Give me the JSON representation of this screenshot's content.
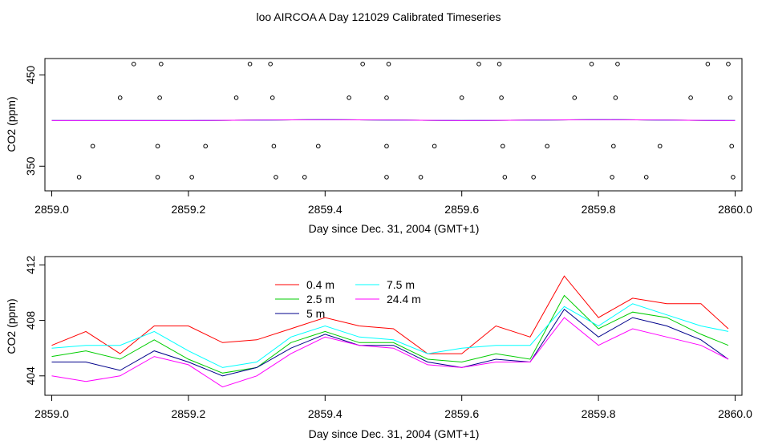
{
  "colors": {
    "background": "#ffffff",
    "axis": "#000000"
  },
  "chart_data": [
    {
      "type": "line",
      "title": "loo AIRCOA A  Day 121029  Calibrated Timeseries",
      "xlabel": "Day since Dec. 31, 2004 (GMT+1)",
      "ylabel": "CO2 (ppm)",
      "xlim": [
        2858.99,
        2860.01
      ],
      "ylim": [
        323,
        468
      ],
      "xticks": [
        2859.0,
        2859.2,
        2859.4,
        2859.6,
        2859.8,
        2860.0
      ],
      "xtick_labels": [
        "2859.0",
        "2859.2",
        "2859.4",
        "2859.6",
        "2859.8",
        "2860.0"
      ],
      "yticks": [
        350,
        450
      ],
      "ytick_labels": [
        "350",
        "450"
      ],
      "grid": false,
      "series": [
        {
          "color": "#ff0000",
          "x": [
            2859.0,
            2859.2,
            2859.4,
            2859.6,
            2859.8,
            2860.0
          ],
          "values": [
            400,
            400,
            401,
            400,
            401,
            400
          ]
        },
        {
          "color": "#00cd00",
          "x": [
            2859.0,
            2859.2,
            2859.4,
            2859.6,
            2859.8,
            2860.0
          ],
          "values": [
            400,
            400,
            401,
            400,
            401,
            400
          ]
        },
        {
          "color": "#0000ff",
          "x": [
            2859.0,
            2859.2,
            2859.4,
            2859.6,
            2859.8,
            2860.0
          ],
          "values": [
            400,
            400,
            401,
            400,
            401,
            400
          ]
        },
        {
          "color": "#00ffff",
          "x": [
            2859.0,
            2859.2,
            2859.4,
            2859.6,
            2859.8,
            2860.0
          ],
          "values": [
            400,
            400,
            401,
            400,
            401,
            400
          ]
        },
        {
          "color": "#ff00ff",
          "x": [
            2859.0,
            2859.2,
            2859.4,
            2859.6,
            2859.8,
            2860.0
          ],
          "values": [
            400,
            400,
            401,
            400,
            401,
            400
          ]
        }
      ],
      "points": [
        {
          "x": 2859.04,
          "y": 338
        },
        {
          "x": 2859.06,
          "y": 372
        },
        {
          "x": 2859.1,
          "y": 425
        },
        {
          "x": 2859.12,
          "y": 462
        },
        {
          "x": 2859.155,
          "y": 338
        },
        {
          "x": 2859.155,
          "y": 372
        },
        {
          "x": 2859.158,
          "y": 425
        },
        {
          "x": 2859.16,
          "y": 462
        },
        {
          "x": 2859.205,
          "y": 338
        },
        {
          "x": 2859.225,
          "y": 372
        },
        {
          "x": 2859.27,
          "y": 425
        },
        {
          "x": 2859.29,
          "y": 462
        },
        {
          "x": 2859.32,
          "y": 462
        },
        {
          "x": 2859.323,
          "y": 425
        },
        {
          "x": 2859.325,
          "y": 372
        },
        {
          "x": 2859.328,
          "y": 338
        },
        {
          "x": 2859.37,
          "y": 338
        },
        {
          "x": 2859.39,
          "y": 372
        },
        {
          "x": 2859.435,
          "y": 425
        },
        {
          "x": 2859.455,
          "y": 462
        },
        {
          "x": 2859.49,
          "y": 338
        },
        {
          "x": 2859.49,
          "y": 372
        },
        {
          "x": 2859.49,
          "y": 425
        },
        {
          "x": 2859.493,
          "y": 462
        },
        {
          "x": 2859.54,
          "y": 338
        },
        {
          "x": 2859.56,
          "y": 372
        },
        {
          "x": 2859.6,
          "y": 425
        },
        {
          "x": 2859.625,
          "y": 462
        },
        {
          "x": 2859.655,
          "y": 462
        },
        {
          "x": 2859.658,
          "y": 425
        },
        {
          "x": 2859.66,
          "y": 372
        },
        {
          "x": 2859.663,
          "y": 338
        },
        {
          "x": 2859.705,
          "y": 338
        },
        {
          "x": 2859.725,
          "y": 372
        },
        {
          "x": 2859.765,
          "y": 425
        },
        {
          "x": 2859.79,
          "y": 462
        },
        {
          "x": 2859.82,
          "y": 338
        },
        {
          "x": 2859.822,
          "y": 372
        },
        {
          "x": 2859.825,
          "y": 425
        },
        {
          "x": 2859.828,
          "y": 462
        },
        {
          "x": 2859.87,
          "y": 338
        },
        {
          "x": 2859.89,
          "y": 372
        },
        {
          "x": 2859.935,
          "y": 425
        },
        {
          "x": 2859.96,
          "y": 462
        },
        {
          "x": 2859.99,
          "y": 462
        },
        {
          "x": 2859.993,
          "y": 425
        },
        {
          "x": 2859.995,
          "y": 372
        },
        {
          "x": 2859.997,
          "y": 338
        }
      ]
    },
    {
      "type": "line",
      "title": "",
      "xlabel": "Day since Dec. 31, 2004 (GMT+1)",
      "ylabel": "CO2 (ppm)",
      "xlim": [
        2858.99,
        2860.01
      ],
      "ylim": [
        402.6,
        412.6
      ],
      "xticks": [
        2859.0,
        2859.2,
        2859.4,
        2859.6,
        2859.8,
        2860.0
      ],
      "xtick_labels": [
        "2859.0",
        "2859.2",
        "2859.4",
        "2859.6",
        "2859.8",
        "2860.0"
      ],
      "yticks": [
        404,
        408,
        412
      ],
      "ytick_labels": [
        "404",
        "408",
        "412"
      ],
      "grid": false,
      "legend_position": "top-left",
      "legend_columns": 2,
      "x": [
        2859.0,
        2859.05,
        2859.1,
        2859.15,
        2859.2,
        2859.25,
        2859.3,
        2859.35,
        2859.4,
        2859.45,
        2859.5,
        2859.55,
        2859.6,
        2859.65,
        2859.7,
        2859.75,
        2859.8,
        2859.85,
        2859.9,
        2859.95,
        2859.99
      ],
      "series": [
        {
          "name": "0.4 m",
          "color": "#ff0000",
          "values": [
            406.2,
            407.2,
            405.6,
            407.6,
            407.6,
            406.4,
            406.6,
            407.4,
            408.2,
            407.6,
            407.4,
            405.6,
            405.6,
            407.6,
            406.8,
            411.2,
            408.2,
            409.6,
            409.2,
            409.2,
            407.4
          ]
        },
        {
          "name": "2.5 m",
          "color": "#00cd00",
          "values": [
            405.4,
            405.8,
            405.2,
            406.6,
            405.2,
            404.2,
            404.6,
            406.4,
            407.2,
            406.4,
            406.4,
            405.2,
            405.0,
            405.6,
            405.2,
            409.8,
            407.4,
            408.6,
            408.2,
            407.0,
            406.2
          ]
        },
        {
          "name": "5 m",
          "color": "#00008b",
          "values": [
            405.0,
            405.0,
            404.4,
            405.8,
            405.0,
            404.0,
            404.6,
            406.0,
            407.0,
            406.2,
            406.2,
            405.0,
            404.6,
            405.2,
            405.0,
            408.8,
            406.8,
            408.2,
            407.6,
            406.6,
            405.2
          ]
        },
        {
          "name": "7.5 m",
          "color": "#00ffff",
          "values": [
            406.0,
            406.2,
            406.2,
            407.2,
            405.8,
            404.6,
            405.0,
            406.8,
            407.6,
            406.8,
            406.6,
            405.6,
            406.0,
            406.2,
            406.2,
            409.0,
            407.6,
            409.2,
            408.4,
            407.6,
            407.2
          ]
        },
        {
          "name": "24.4 m",
          "color": "#ff00ff",
          "values": [
            404.0,
            403.6,
            404.0,
            405.4,
            404.8,
            403.2,
            404.0,
            405.6,
            406.8,
            406.2,
            406.0,
            404.8,
            404.6,
            405.0,
            405.0,
            408.2,
            406.2,
            407.4,
            406.8,
            406.2,
            405.2
          ]
        }
      ]
    }
  ]
}
